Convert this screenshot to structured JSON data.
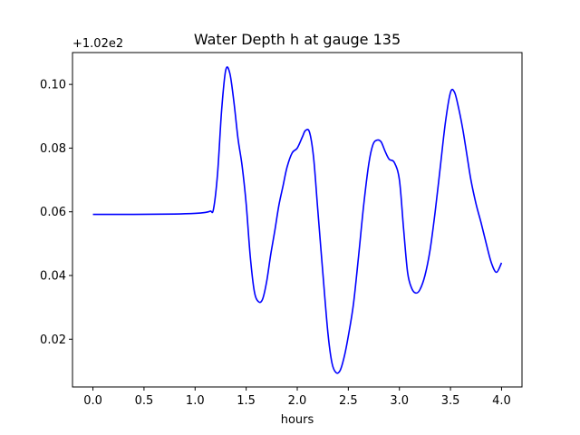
{
  "chart_data": {
    "type": "line",
    "title": "Water Depth h at gauge 135",
    "xlabel": "hours",
    "ylabel": "",
    "offset_label": "+1.02e2",
    "xlim": [
      -0.2,
      4.2
    ],
    "ylim": [
      0.005,
      0.11
    ],
    "xticks": [
      0.0,
      0.5,
      1.0,
      1.5,
      2.0,
      2.5,
      3.0,
      3.5,
      4.0
    ],
    "xtick_labels": [
      "0.0",
      "0.5",
      "1.0",
      "1.5",
      "2.0",
      "2.5",
      "3.0",
      "3.5",
      "4.0"
    ],
    "yticks": [
      0.02,
      0.04,
      0.06,
      0.08,
      0.1
    ],
    "ytick_labels": [
      "0.02",
      "0.04",
      "0.06",
      "0.08",
      "0.10"
    ],
    "grid": false,
    "series": [
      {
        "color": "#0000ff",
        "x": [
          0.0,
          0.4,
          0.8,
          1.0,
          1.1,
          1.15,
          1.18,
          1.22,
          1.26,
          1.3,
          1.34,
          1.38,
          1.42,
          1.46,
          1.5,
          1.54,
          1.58,
          1.62,
          1.66,
          1.7,
          1.74,
          1.78,
          1.82,
          1.86,
          1.9,
          1.95,
          2.0,
          2.05,
          2.08,
          2.12,
          2.16,
          2.2,
          2.25,
          2.3,
          2.34,
          2.38,
          2.42,
          2.46,
          2.5,
          2.55,
          2.6,
          2.65,
          2.7,
          2.74,
          2.78,
          2.82,
          2.86,
          2.9,
          2.95,
          3.0,
          3.04,
          3.08,
          3.12,
          3.16,
          3.2,
          3.25,
          3.3,
          3.35,
          3.4,
          3.45,
          3.5,
          3.54,
          3.58,
          3.62,
          3.66,
          3.7,
          3.75,
          3.8,
          3.85,
          3.9,
          3.95,
          4.0
        ],
        "y": [
          0.0592,
          0.0592,
          0.0593,
          0.0595,
          0.0598,
          0.0602,
          0.0608,
          0.072,
          0.092,
          0.1045,
          0.1035,
          0.0945,
          0.083,
          0.0745,
          0.0625,
          0.046,
          0.035,
          0.0318,
          0.0325,
          0.038,
          0.0465,
          0.054,
          0.062,
          0.068,
          0.074,
          0.0785,
          0.08,
          0.0835,
          0.0855,
          0.085,
          0.077,
          0.061,
          0.041,
          0.022,
          0.0125,
          0.0095,
          0.0102,
          0.0145,
          0.021,
          0.031,
          0.046,
          0.062,
          0.075,
          0.081,
          0.0825,
          0.082,
          0.079,
          0.0765,
          0.0755,
          0.07,
          0.055,
          0.041,
          0.036,
          0.0345,
          0.0355,
          0.04,
          0.048,
          0.06,
          0.074,
          0.088,
          0.0975,
          0.0975,
          0.0925,
          0.086,
          0.078,
          0.07,
          0.0625,
          0.0565,
          0.05,
          0.044,
          0.041,
          0.044
        ]
      }
    ]
  }
}
